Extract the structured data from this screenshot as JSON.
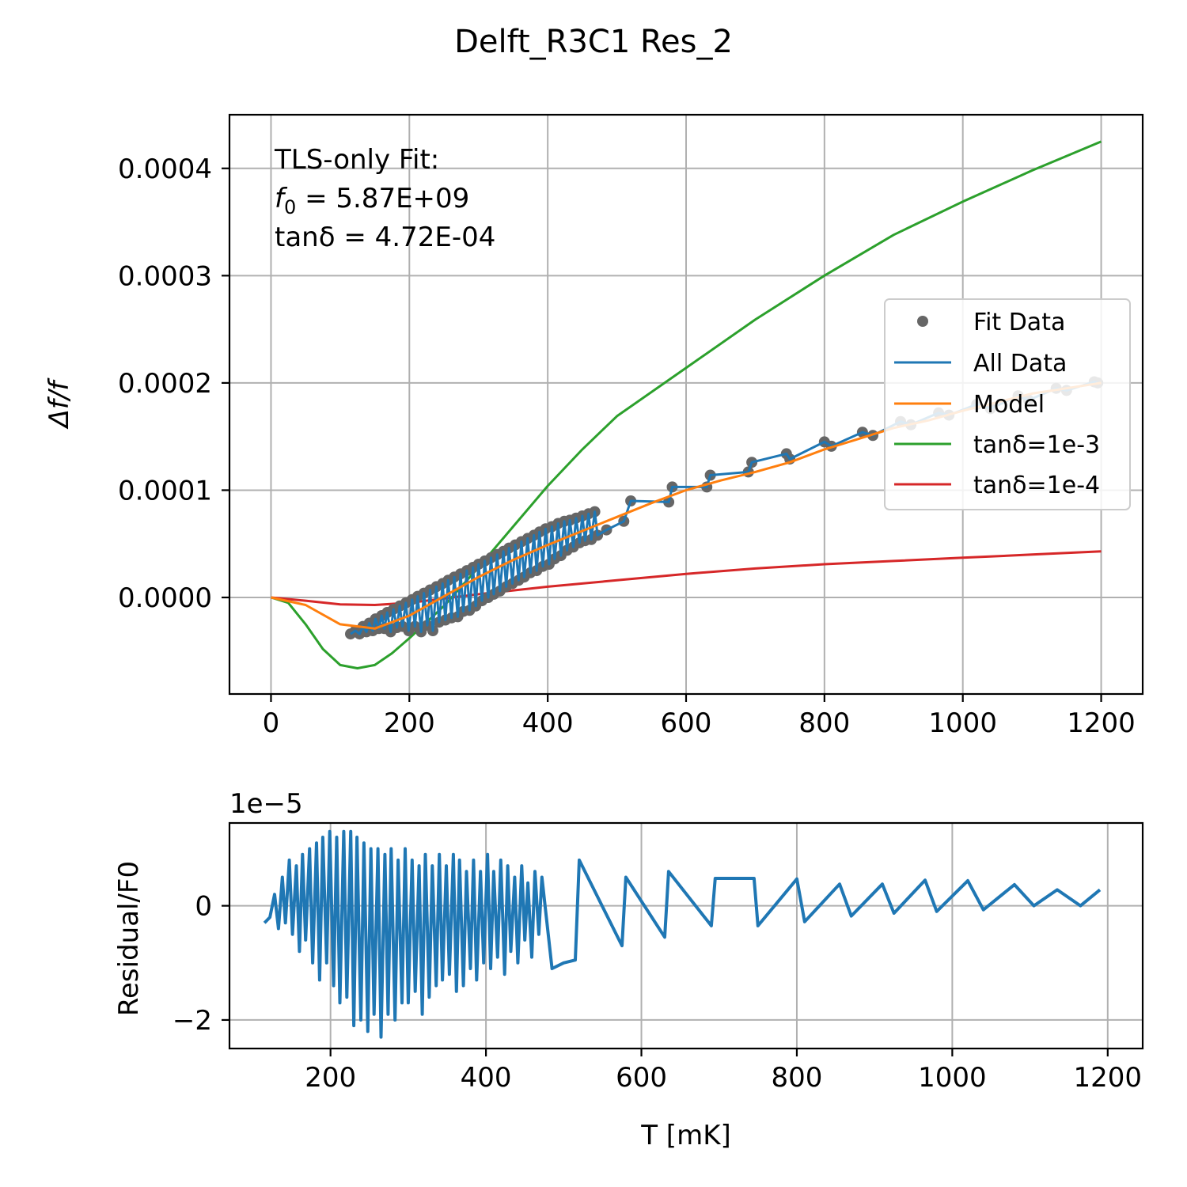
{
  "title": "Delft_R3C1 Res_2",
  "chart_data": [
    {
      "type": "line",
      "ylabel": "Δf/f",
      "xlim": [
        -60,
        1260
      ],
      "ylim": [
        -9e-05,
        0.00045
      ],
      "xticks": [
        "0",
        "200",
        "400",
        "600",
        "800",
        "1000",
        "1200"
      ],
      "yticks": [
        "0.0000",
        "0.0001",
        "0.0002",
        "0.0003",
        "0.0004"
      ],
      "grid": true,
      "legend_position": "center-right",
      "annotation": {
        "line1": "TLS-only Fit:",
        "line2_sym": "f",
        "line2_sub": "0",
        "line2_rest": " = 5.87E+09",
        "line3_sym": "tanδ",
        "line3_rest": " = 4.72E-04"
      },
      "series": [
        {
          "name": "Fit Data",
          "kind": "points",
          "color": "#666666"
        },
        {
          "name": "All Data",
          "kind": "line",
          "color": "#1f77b4"
        },
        {
          "name": "Model",
          "kind": "line",
          "color": "#ff7f0e",
          "x": [
            0,
            50,
            100,
            150,
            200,
            250,
            300,
            350,
            400,
            450,
            500,
            550,
            600,
            650,
            700,
            750,
            800,
            850,
            900,
            950,
            1000,
            1050,
            1100,
            1150,
            1200
          ],
          "y": [
            0,
            -7e-06,
            -2.5e-05,
            -2.9e-05,
            -1.7e-05,
            1e-06,
            1.9e-05,
            3.5e-05,
            4.9e-05,
            6.2e-05,
            7.5e-05,
            8.8e-05,
            0.0001,
            0.000109,
            0.000117,
            0.000126,
            0.000138,
            0.000148,
            0.000158,
            0.000165,
            0.000174,
            0.000182,
            0.00019,
            0.000195,
            0.0002
          ]
        },
        {
          "name": "tanδ=1e-3",
          "kind": "line",
          "color": "#2ca02c",
          "x": [
            0,
            25,
            50,
            75,
            100,
            125,
            150,
            175,
            200,
            250,
            300,
            350,
            400,
            450,
            500,
            600,
            700,
            800,
            900,
            1000,
            1100,
            1200
          ],
          "y": [
            0,
            -5e-06,
            -2.5e-05,
            -4.8e-05,
            -6.3e-05,
            -6.6e-05,
            -6.3e-05,
            -5.2e-05,
            -3.8e-05,
            -8e-06,
            2.8e-05,
            6.6e-05,
            0.000104,
            0.000138,
            0.000169,
            0.000214,
            0.000259,
            0.0003,
            0.000338,
            0.000369,
            0.000398,
            0.000425
          ]
        },
        {
          "name": "tanδ=1e-4",
          "kind": "line",
          "color": "#d62728",
          "x": [
            0,
            50,
            100,
            150,
            200,
            250,
            300,
            400,
            500,
            600,
            700,
            800,
            900,
            1000,
            1100,
            1200
          ],
          "y": [
            0,
            -3e-06,
            -6.5e-06,
            -7e-06,
            -5e-06,
            -1e-06,
            3e-06,
            1e-05,
            1.6e-05,
            2.2e-05,
            2.7e-05,
            3.1e-05,
            3.4e-05,
            3.7e-05,
            4e-05,
            4.3e-05
          ]
        }
      ],
      "fit_data": {
        "x": [
          115,
          122,
          128,
          133,
          138,
          142,
          147,
          151,
          156,
          160,
          164,
          168,
          173,
          177,
          182,
          186,
          190,
          195,
          199,
          204,
          208,
          212,
          217,
          221,
          226,
          230,
          234,
          239,
          243,
          248,
          252,
          256,
          261,
          265,
          270,
          274,
          278,
          283,
          287,
          292,
          296,
          300,
          305,
          309,
          314,
          318,
          322,
          327,
          331,
          336,
          340,
          344,
          349,
          353,
          358,
          362,
          366,
          371,
          375,
          380,
          384,
          388,
          393,
          397,
          402,
          406,
          410,
          415,
          419,
          424,
          428,
          432,
          437,
          441,
          446,
          450,
          454,
          459,
          463,
          468,
          472,
          485,
          510,
          520,
          575,
          580,
          630,
          635,
          690,
          695,
          745,
          750,
          800,
          810,
          855,
          870,
          910,
          925,
          965,
          980,
          1020,
          1040,
          1080,
          1095,
          1135,
          1150,
          1190,
          1195
        ],
        "y": [
          -3.4e-05,
          -3.1e-05,
          -3.4e-05,
          -2.7e-05,
          -3.2e-05,
          -2.4e-05,
          -3.1e-05,
          -2e-05,
          -2.9e-05,
          -1.7e-05,
          -2.9e-05,
          -1.4e-05,
          -3.2e-05,
          -1.1e-05,
          -2.8e-05,
          -8e-06,
          -2.7e-05,
          -5e-06,
          -3.1e-05,
          -2e-06,
          -2.7e-05,
          1e-06,
          -3.2e-05,
          4e-06,
          -2.6e-05,
          7e-06,
          -3.1e-05,
          1e-05,
          -2.3e-05,
          1.3e-05,
          -2.1e-05,
          1.6e-05,
          -1.9e-05,
          1.9e-05,
          -1.8e-05,
          2.2e-05,
          -1.3e-05,
          2.5e-05,
          -1.2e-05,
          2.8e-05,
          -8e-06,
          3.1e-05,
          -3e-06,
          3.4e-05,
          0.0,
          3.7e-05,
          3e-06,
          4e-05,
          6e-06,
          4.3e-05,
          1e-05,
          4.6e-05,
          1.3e-05,
          4.9e-05,
          1.6e-05,
          5.2e-05,
          1.9e-05,
          5.5e-05,
          2.3e-05,
          5.8e-05,
          2.5e-05,
          6.1e-05,
          2.9e-05,
          6.4e-05,
          3.1e-05,
          6.6e-05,
          3.6e-05,
          6.9e-05,
          3.9e-05,
          7.1e-05,
          4.4e-05,
          7.2e-05,
          4.7e-05,
          7.4e-05,
          5.1e-05,
          7.6e-05,
          5.3e-05,
          7.8e-05,
          5.4e-05,
          8e-05,
          5.8e-05,
          6.3e-05,
          7.1e-05,
          9e-05,
          8.9e-05,
          0.000103,
          0.000103,
          0.000114,
          0.000117,
          0.000126,
          0.000134,
          0.000129,
          0.000145,
          0.000141,
          0.000154,
          0.000151,
          0.000164,
          0.000161,
          0.000172,
          0.00017,
          0.00018,
          0.000176,
          0.000188,
          0.000184,
          0.000195,
          0.000193,
          0.000201,
          0.0002
        ]
      }
    },
    {
      "type": "line",
      "xlabel": "T [mK]",
      "ylabel": "Residual/F0",
      "offset_text": "1e−5",
      "xlim": [
        70,
        1245
      ],
      "ylim": [
        -2.5,
        1.45
      ],
      "xticks": [
        "200",
        "400",
        "600",
        "800",
        "1000",
        "1200"
      ],
      "yticks": [
        "−2",
        "0"
      ],
      "grid": true,
      "series": [
        {
          "name": "",
          "color": "#1f77b4",
          "x": [
            115,
            122,
            128,
            133,
            138,
            142,
            147,
            151,
            156,
            160,
            164,
            168,
            173,
            177,
            182,
            186,
            190,
            195,
            199,
            204,
            208,
            212,
            217,
            221,
            226,
            230,
            234,
            239,
            243,
            248,
            252,
            256,
            261,
            265,
            270,
            274,
            278,
            283,
            287,
            292,
            296,
            300,
            305,
            309,
            314,
            318,
            322,
            327,
            331,
            336,
            340,
            344,
            349,
            353,
            358,
            362,
            366,
            371,
            375,
            380,
            384,
            388,
            393,
            397,
            402,
            406,
            410,
            415,
            419,
            424,
            428,
            432,
            437,
            441,
            446,
            450,
            454,
            459,
            463,
            468,
            472,
            485,
            500,
            515,
            520,
            575,
            580,
            630,
            635,
            690,
            695,
            745,
            750,
            800,
            810,
            855,
            870,
            910,
            925,
            965,
            980,
            1020,
            1040,
            1080,
            1105,
            1135,
            1165,
            1190
          ],
          "y": [
            -0.3,
            -0.2,
            0.2,
            -0.4,
            0.5,
            -0.3,
            0.8,
            -0.5,
            0.7,
            -0.8,
            0.9,
            -0.6,
            1.0,
            -1.0,
            1.1,
            -1.3,
            1.2,
            -1.0,
            1.3,
            -1.4,
            1.2,
            -1.7,
            1.3,
            -1.6,
            1.3,
            -2.1,
            1.2,
            -2.0,
            1.1,
            -2.2,
            1.0,
            -1.9,
            1.0,
            -2.3,
            0.9,
            -1.9,
            1.0,
            -2.0,
            0.8,
            -1.7,
            1.0,
            -1.7,
            0.8,
            -1.5,
            0.7,
            -1.9,
            0.9,
            -1.6,
            0.7,
            -1.4,
            0.9,
            -1.3,
            0.7,
            -1.2,
            0.9,
            -1.5,
            0.8,
            -1.4,
            0.6,
            -1.1,
            0.8,
            -1.3,
            0.6,
            -1.0,
            0.9,
            -1.1,
            0.6,
            -0.9,
            0.8,
            -1.2,
            0.7,
            -0.8,
            0.5,
            -1.0,
            0.7,
            -0.6,
            0.4,
            -0.9,
            0.6,
            -0.5,
            0.5,
            -1.1,
            -1.0,
            -0.95,
            0.8,
            -0.7,
            0.5,
            -0.55,
            0.6,
            -0.35,
            0.48,
            0.48,
            -0.35,
            0.47,
            -0.28,
            0.38,
            -0.18,
            0.38,
            -0.13,
            0.45,
            -0.1,
            0.44,
            -0.07,
            0.37,
            0.0,
            0.28,
            0.0,
            0.28
          ]
        }
      ]
    }
  ]
}
